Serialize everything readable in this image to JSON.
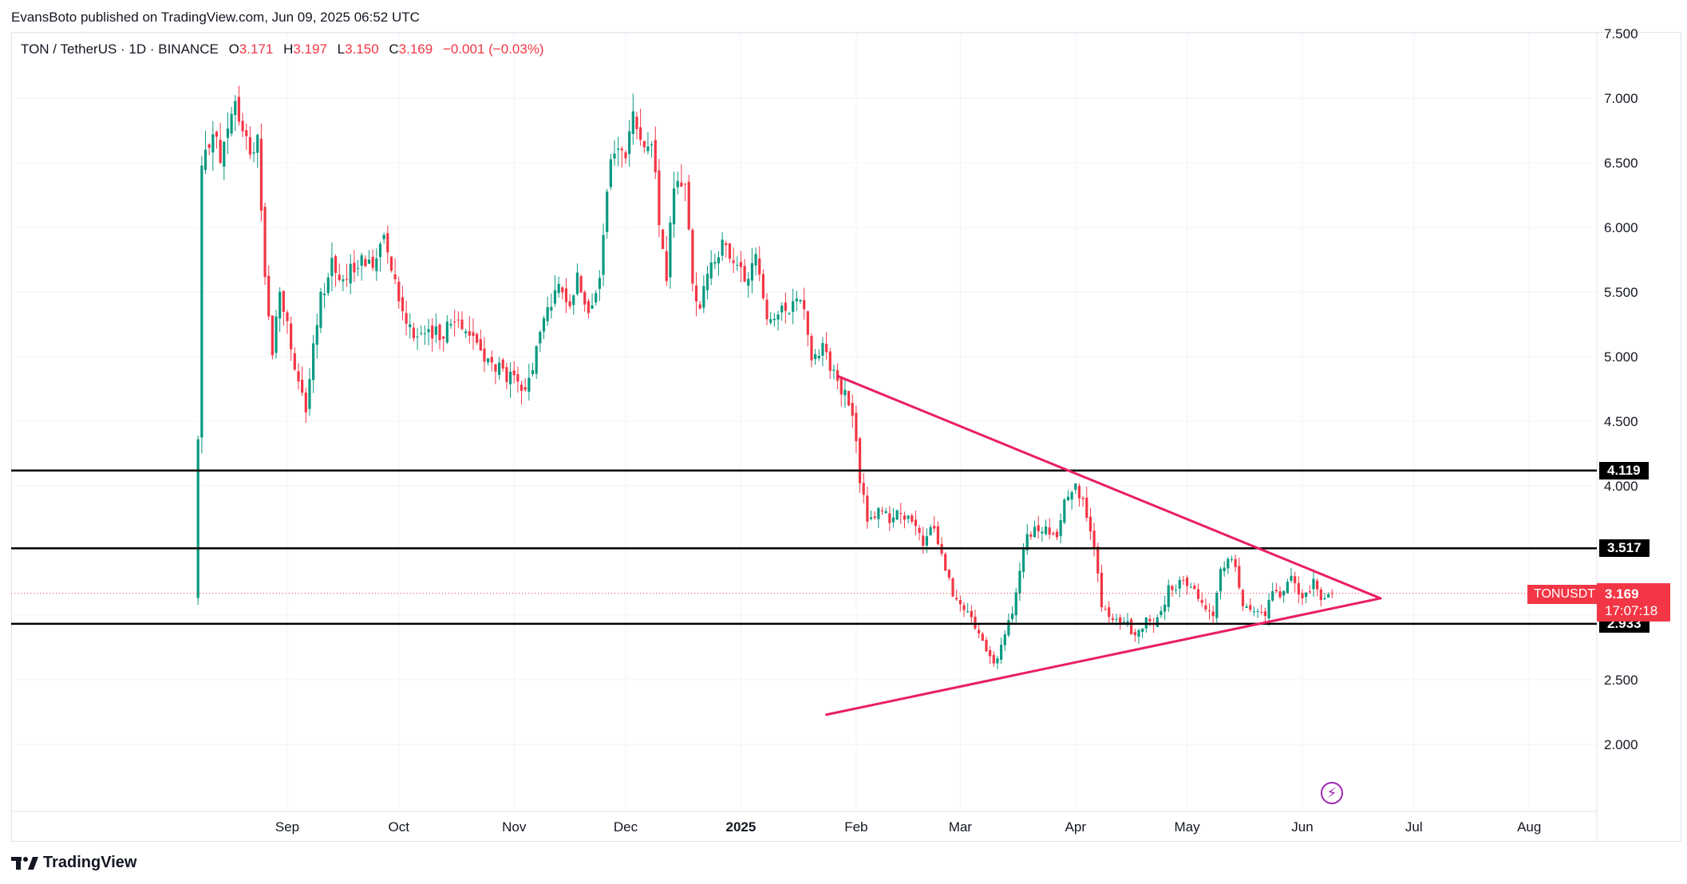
{
  "publisher": "EvansBoto published on TradingView.com, Jun 09, 2025 06:52 UTC",
  "legend": {
    "symbol": "TON / TetherUS · 1D · BINANCE",
    "open_label": "O",
    "open": "3.171",
    "high_label": "H",
    "high": "3.197",
    "low_label": "L",
    "low": "3.150",
    "close_label": "C",
    "close": "3.169",
    "change": "−0.001 (−0.03%)"
  },
  "ticker_tag": "TONUSDT",
  "last_price": "3.169",
  "countdown": "17:07:18",
  "level_labels": [
    "4.119",
    "3.517",
    "2.933"
  ],
  "footer_brand": "TradingView",
  "icons": {
    "brand": "tradingview-logo-icon",
    "lightning": "lightning-icon"
  },
  "colors": {
    "up": "#089981",
    "down": "#f23645",
    "trendline": "#e91e63",
    "level": "#000000",
    "accent": "#f23645"
  },
  "chart_data": {
    "type": "candlestick",
    "title": "TON / TetherUS · 1D · BINANCE",
    "x_tick_labels": [
      "Sep",
      "Oct",
      "Nov",
      "Dec",
      "2025",
      "Feb",
      "Mar",
      "Apr",
      "May",
      "Jun",
      "Jul",
      "Aug"
    ],
    "y_tick_labels": [
      "2.000",
      "2.500",
      "3.000",
      "3.500",
      "4.000",
      "4.500",
      "5.000",
      "5.500",
      "6.000",
      "6.500",
      "7.000",
      "7.500"
    ],
    "ylim": [
      1.5,
      7.5
    ],
    "grid": true,
    "horizontal_levels": [
      4.119,
      3.517,
      2.933
    ],
    "trendlines": [
      {
        "name": "upper",
        "from": [
          "2025-01-27",
          4.85
        ],
        "to": [
          "2025-06-22",
          3.13
        ]
      },
      {
        "name": "lower",
        "from": [
          "2025-01-24",
          2.23
        ],
        "to": [
          "2025-06-22",
          3.13
        ]
      }
    ],
    "series": [
      {
        "name": "TONUSDT",
        "anchors": [
          [
            "2024-08-08",
            4.35
          ],
          [
            "2024-08-09",
            6.4
          ],
          [
            "2024-08-12",
            6.8
          ],
          [
            "2024-08-14",
            6.5
          ],
          [
            "2024-08-18",
            6.95
          ],
          [
            "2024-08-20",
            6.75
          ],
          [
            "2024-08-22",
            6.55
          ],
          [
            "2024-08-24",
            6.75
          ],
          [
            "2024-08-26",
            5.6
          ],
          [
            "2024-08-28",
            5.05
          ],
          [
            "2024-08-30",
            5.5
          ],
          [
            "2024-09-01",
            5.25
          ],
          [
            "2024-09-04",
            4.75
          ],
          [
            "2024-09-06",
            4.6
          ],
          [
            "2024-09-08",
            5.05
          ],
          [
            "2024-09-10",
            5.45
          ],
          [
            "2024-09-13",
            5.75
          ],
          [
            "2024-09-16",
            5.55
          ],
          [
            "2024-09-20",
            5.75
          ],
          [
            "2024-09-24",
            5.7
          ],
          [
            "2024-09-27",
            6.0
          ],
          [
            "2024-09-30",
            5.6
          ],
          [
            "2024-10-02",
            5.35
          ],
          [
            "2024-10-05",
            5.2
          ],
          [
            "2024-10-09",
            5.15
          ],
          [
            "2024-10-13",
            5.2
          ],
          [
            "2024-10-17",
            5.3
          ],
          [
            "2024-10-21",
            5.15
          ],
          [
            "2024-10-25",
            4.95
          ],
          [
            "2024-10-28",
            4.9
          ],
          [
            "2024-11-01",
            4.8
          ],
          [
            "2024-11-04",
            4.7
          ],
          [
            "2024-11-07",
            5.05
          ],
          [
            "2024-11-10",
            5.4
          ],
          [
            "2024-11-13",
            5.5
          ],
          [
            "2024-11-16",
            5.45
          ],
          [
            "2024-11-18",
            5.6
          ],
          [
            "2024-11-21",
            5.4
          ],
          [
            "2024-11-24",
            5.55
          ],
          [
            "2024-11-26",
            6.3
          ],
          [
            "2024-11-28",
            6.6
          ],
          [
            "2024-12-01",
            6.55
          ],
          [
            "2024-12-03",
            6.85
          ],
          [
            "2024-12-05",
            6.7
          ],
          [
            "2024-12-08",
            6.7
          ],
          [
            "2024-12-10",
            6.0
          ],
          [
            "2024-12-12",
            5.6
          ],
          [
            "2024-12-14",
            6.35
          ],
          [
            "2024-12-17",
            6.35
          ],
          [
            "2024-12-19",
            5.55
          ],
          [
            "2024-12-21",
            5.4
          ],
          [
            "2024-12-24",
            5.75
          ],
          [
            "2024-12-27",
            5.85
          ],
          [
            "2024-12-30",
            5.7
          ],
          [
            "2025-01-02",
            5.6
          ],
          [
            "2025-01-05",
            5.75
          ],
          [
            "2025-01-08",
            5.35
          ],
          [
            "2025-01-11",
            5.3
          ],
          [
            "2025-01-14",
            5.4
          ],
          [
            "2025-01-17",
            5.5
          ],
          [
            "2025-01-20",
            5.0
          ],
          [
            "2025-01-23",
            5.1
          ],
          [
            "2025-01-26",
            4.85
          ],
          [
            "2025-01-29",
            4.7
          ],
          [
            "2025-01-31",
            4.55
          ],
          [
            "2025-02-02",
            4.05
          ],
          [
            "2025-02-04",
            3.75
          ],
          [
            "2025-02-07",
            3.8
          ],
          [
            "2025-02-10",
            3.75
          ],
          [
            "2025-02-13",
            3.8
          ],
          [
            "2025-02-16",
            3.7
          ],
          [
            "2025-02-19",
            3.55
          ],
          [
            "2025-02-22",
            3.7
          ],
          [
            "2025-02-25",
            3.35
          ],
          [
            "2025-02-28",
            3.1
          ],
          [
            "2025-03-03",
            3.0
          ],
          [
            "2025-03-06",
            2.85
          ],
          [
            "2025-03-10",
            2.6
          ],
          [
            "2025-03-13",
            2.85
          ],
          [
            "2025-03-15",
            3.0
          ],
          [
            "2025-03-18",
            3.55
          ],
          [
            "2025-03-21",
            3.65
          ],
          [
            "2025-03-24",
            3.65
          ],
          [
            "2025-03-27",
            3.6
          ],
          [
            "2025-03-29",
            3.9
          ],
          [
            "2025-04-01",
            4.05
          ],
          [
            "2025-04-03",
            3.85
          ],
          [
            "2025-04-06",
            3.55
          ],
          [
            "2025-04-08",
            3.05
          ],
          [
            "2025-04-11",
            2.95
          ],
          [
            "2025-04-14",
            2.95
          ],
          [
            "2025-04-17",
            2.85
          ],
          [
            "2025-04-20",
            2.95
          ],
          [
            "2025-04-23",
            2.95
          ],
          [
            "2025-04-26",
            3.2
          ],
          [
            "2025-04-29",
            3.25
          ],
          [
            "2025-05-02",
            3.25
          ],
          [
            "2025-05-05",
            3.1
          ],
          [
            "2025-05-08",
            3.0
          ],
          [
            "2025-05-10",
            3.35
          ],
          [
            "2025-05-13",
            3.45
          ],
          [
            "2025-05-16",
            3.1
          ],
          [
            "2025-05-19",
            3.05
          ],
          [
            "2025-05-22",
            3.0
          ],
          [
            "2025-05-24",
            3.2
          ],
          [
            "2025-05-26",
            3.1
          ],
          [
            "2025-05-29",
            3.3
          ],
          [
            "2025-06-01",
            3.15
          ],
          [
            "2025-06-04",
            3.25
          ],
          [
            "2025-06-06",
            3.1
          ],
          [
            "2025-06-09",
            3.169
          ]
        ]
      }
    ]
  }
}
